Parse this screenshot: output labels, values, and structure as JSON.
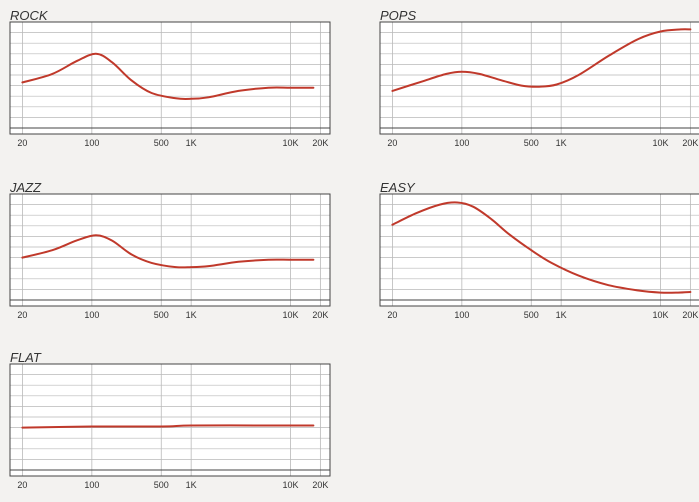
{
  "colors": {
    "curve": "#c0392b",
    "frame": "#444444",
    "grid": "#b9b9b9"
  },
  "chart_data": [
    {
      "type": "line",
      "title": "ROCK",
      "x_ticks": [
        "20",
        "100",
        "500",
        "1K",
        "10K",
        "20K"
      ],
      "x_tick_values": [
        20,
        100,
        500,
        1000,
        10000,
        20000
      ],
      "x_scale": "log",
      "xlim": [
        15,
        25000
      ],
      "ylim": [
        0,
        10
      ],
      "grid": true,
      "series": [
        {
          "x": [
            20,
            40,
            70,
            110,
            160,
            250,
            400,
            700,
            1000,
            1500,
            3000,
            6000,
            10000,
            17000
          ],
          "y": [
            4.3,
            5.1,
            6.3,
            7.0,
            6.2,
            4.5,
            3.3,
            2.8,
            2.75,
            2.9,
            3.5,
            3.8,
            3.8,
            3.8
          ]
        }
      ]
    },
    {
      "type": "line",
      "title": "POPS",
      "x_ticks": [
        "20",
        "100",
        "500",
        "1K",
        "10K",
        "20K"
      ],
      "x_tick_values": [
        20,
        100,
        500,
        1000,
        10000,
        20000
      ],
      "x_scale": "log",
      "xlim": [
        15,
        25000
      ],
      "ylim": [
        0,
        10
      ],
      "grid": true,
      "series": [
        {
          "x": [
            20,
            40,
            70,
            100,
            150,
            250,
            400,
            600,
            900,
            1500,
            3000,
            6000,
            10000,
            16000,
            20000
          ],
          "y": [
            3.5,
            4.4,
            5.1,
            5.3,
            5.1,
            4.5,
            4.0,
            3.9,
            4.1,
            5.0,
            6.8,
            8.4,
            9.1,
            9.3,
            9.3
          ]
        }
      ]
    },
    {
      "type": "line",
      "title": "JAZZ",
      "x_ticks": [
        "20",
        "100",
        "500",
        "1K",
        "10K",
        "20K"
      ],
      "x_tick_values": [
        20,
        100,
        500,
        1000,
        10000,
        20000
      ],
      "x_scale": "log",
      "xlim": [
        15,
        25000
      ],
      "ylim": [
        0,
        10
      ],
      "grid": true,
      "series": [
        {
          "x": [
            20,
            40,
            70,
            110,
            160,
            250,
            400,
            700,
            1000,
            1500,
            3000,
            6000,
            10000,
            17000
          ],
          "y": [
            4.0,
            4.7,
            5.6,
            6.1,
            5.6,
            4.3,
            3.5,
            3.1,
            3.1,
            3.2,
            3.6,
            3.8,
            3.8,
            3.8
          ]
        }
      ]
    },
    {
      "type": "line",
      "title": "EASY",
      "x_ticks": [
        "20",
        "100",
        "500",
        "1K",
        "10K",
        "20K"
      ],
      "x_tick_values": [
        20,
        100,
        500,
        1000,
        10000,
        20000
      ],
      "x_scale": "log",
      "xlim": [
        15,
        25000
      ],
      "ylim": [
        0,
        10
      ],
      "grid": true,
      "series": [
        {
          "x": [
            20,
            35,
            60,
            90,
            130,
            200,
            300,
            500,
            800,
            1500,
            3000,
            6000,
            10000,
            15000,
            20000
          ],
          "y": [
            7.1,
            8.2,
            9.0,
            9.2,
            8.8,
            7.6,
            6.2,
            4.7,
            3.5,
            2.3,
            1.4,
            0.9,
            0.7,
            0.7,
            0.75
          ]
        }
      ]
    },
    {
      "type": "line",
      "title": "FLAT",
      "x_ticks": [
        "20",
        "100",
        "500",
        "1K",
        "10K",
        "20K"
      ],
      "x_tick_values": [
        20,
        100,
        500,
        1000,
        10000,
        20000
      ],
      "x_scale": "log",
      "xlim": [
        15,
        25000
      ],
      "ylim": [
        0,
        10
      ],
      "grid": true,
      "series": [
        {
          "x": [
            20,
            100,
            500,
            1000,
            5000,
            17000
          ],
          "y": [
            4.0,
            4.1,
            4.1,
            4.2,
            4.2,
            4.2
          ]
        }
      ]
    }
  ]
}
